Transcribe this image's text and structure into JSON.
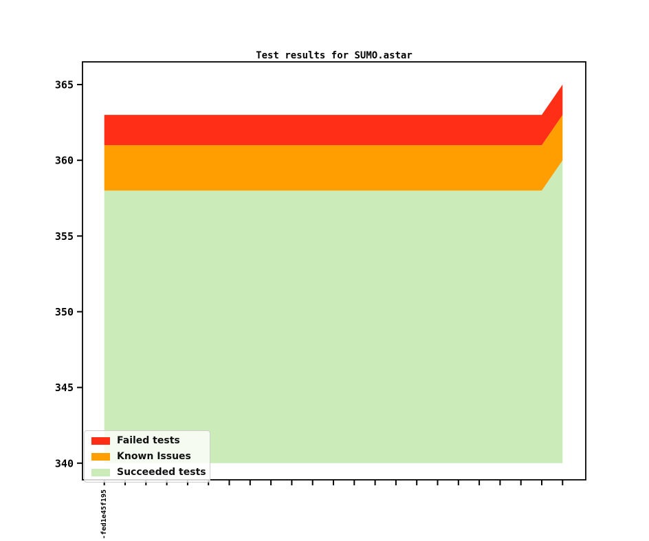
{
  "chart_data": {
    "type": "area",
    "stacked": true,
    "title": "Test results for SUMO.astar",
    "xlabel": "",
    "ylabel": "",
    "grid": false,
    "legend_position": "lower left",
    "yticks": [
      340,
      345,
      350,
      355,
      360,
      365
    ],
    "ylim": [
      338.9,
      366.5
    ],
    "baseline": 340,
    "xtick_labels": [
      "-fed1e45f195",
      "",
      "",
      "",
      "",
      "",
      "",
      "",
      "",
      "",
      "",
      "",
      "",
      "",
      "",
      "",
      "",
      "",
      "",
      "",
      "",
      "",
      ""
    ],
    "series": [
      {
        "name": "Succeeded tests",
        "color": "#cbecb8",
        "values": [
          358,
          358,
          358,
          358,
          358,
          358,
          358,
          358,
          358,
          358,
          358,
          358,
          358,
          358,
          358,
          358,
          358,
          358,
          358,
          358,
          358,
          358,
          360
        ]
      },
      {
        "name": "Known Issues",
        "color": "#ff9e00",
        "values": [
          3,
          3,
          3,
          3,
          3,
          3,
          3,
          3,
          3,
          3,
          3,
          3,
          3,
          3,
          3,
          3,
          3,
          3,
          3,
          3,
          3,
          3,
          3
        ]
      },
      {
        "name": "Failed tests",
        "color": "#ff2e16",
        "values": [
          2,
          2,
          2,
          2,
          2,
          2,
          2,
          2,
          2,
          2,
          2,
          2,
          2,
          2,
          2,
          2,
          2,
          2,
          2,
          2,
          2,
          2,
          2
        ]
      }
    ],
    "stack_totals": {
      "succeeded_top_typical": 358,
      "known_issues_top_typical": 361,
      "failed_top_typical": 363,
      "succeeded_top_last": 360,
      "known_issues_top_last": 363,
      "failed_top_last": 365
    }
  },
  "legend": {
    "items": [
      {
        "label": "Failed tests",
        "color": "#ff2e16"
      },
      {
        "label": "Known Issues",
        "color": "#ff9e00"
      },
      {
        "label": "Succeeded tests",
        "color": "#cbecb8"
      }
    ]
  }
}
